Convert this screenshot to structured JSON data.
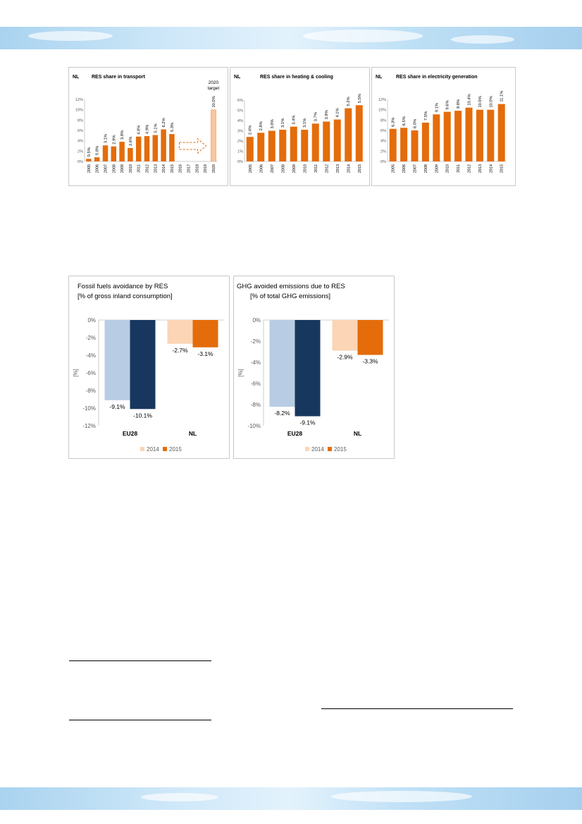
{
  "colors": {
    "orange": "#e46c0a",
    "light_orange": "#fbd5b5",
    "light_blue": "#b8cce4",
    "navy": "#17375e",
    "gridline": "#d9d9d9",
    "header_band": "#cfe8f9"
  },
  "chart_data": [
    {
      "type": "bar",
      "region": "NL",
      "title": "RES share in transport",
      "categories": [
        "2005",
        "2006",
        "2007",
        "2008",
        "2009",
        "2010",
        "2011",
        "2012",
        "2013",
        "2014",
        "2015",
        "2016",
        "2017",
        "2018",
        "2019",
        "2020"
      ],
      "values": [
        0.5,
        0.8,
        3.1,
        2.9,
        3.8,
        2.6,
        4.8,
        4.9,
        5.1,
        6.2,
        5.3,
        null,
        null,
        null,
        null,
        null
      ],
      "labels": [
        "0.5%",
        "0.8%",
        "3.1%",
        "2.9%",
        "3.8%",
        "2.6%",
        "4.8%",
        "4.9%",
        "5.1%",
        "6.2%",
        "5.3%",
        "",
        "",
        "",
        "",
        ""
      ],
      "target": {
        "label": "2020 target",
        "category": "2020",
        "value": 10.0,
        "value_label": "10.0%"
      },
      "yticks": [
        "0%",
        "2%",
        "4%",
        "6%",
        "8%",
        "10%",
        "12%"
      ],
      "ylim": [
        0,
        12
      ],
      "grid": false,
      "legend": "none"
    },
    {
      "type": "bar",
      "region": "NL",
      "title": "RES share in heating & cooling",
      "categories": [
        "2005",
        "2006",
        "2007",
        "2008",
        "2009",
        "2010",
        "2011",
        "2012",
        "2013",
        "2014",
        "2015"
      ],
      "values": [
        2.4,
        2.8,
        3.0,
        3.1,
        3.4,
        3.1,
        3.7,
        3.9,
        4.1,
        5.2,
        5.5
      ],
      "labels": [
        "2.4%",
        "2.8%",
        "3.0%",
        "3.1%",
        "3.4%",
        "3.1%",
        "3.7%",
        "3.9%",
        "4.1%",
        "5.2%",
        "5.5%"
      ],
      "yticks": [
        "0%",
        "1%",
        "2%",
        "3%",
        "4%",
        "5%",
        "6%"
      ],
      "ylim": [
        0,
        6
      ],
      "grid": false,
      "legend": "none"
    },
    {
      "type": "bar",
      "region": "NL",
      "title": "RES share in electricity generation",
      "categories": [
        "2005",
        "2006",
        "2007",
        "2008",
        "2009",
        "2010",
        "2011",
        "2012",
        "2013",
        "2014",
        "2015"
      ],
      "values": [
        6.3,
        6.5,
        6.0,
        7.5,
        9.1,
        9.6,
        9.8,
        10.4,
        10.0,
        10.0,
        11.1
      ],
      "labels": [
        "6.3%",
        "6.5%",
        "6.0%",
        "7.5%",
        "9.1%",
        "9.6%",
        "9.8%",
        "10.4%",
        "10.0%",
        "10.0%",
        "11.1%"
      ],
      "yticks": [
        "0%",
        "2%",
        "4%",
        "6%",
        "8%",
        "10%",
        "12%"
      ],
      "ylim": [
        0,
        12
      ],
      "grid": false,
      "legend": "none"
    },
    {
      "type": "bar",
      "title": "Fossil fuels avoidance by RES",
      "subtitle": "[% of gross inland consumption]",
      "ylabel": "[%]",
      "categories": [
        "EU28",
        "NL"
      ],
      "series": [
        {
          "name": "2014",
          "values": [
            -9.1,
            -2.7
          ],
          "labels": [
            "-9.1%",
            "-2.7%"
          ]
        },
        {
          "name": "2015",
          "values": [
            -10.1,
            -3.1
          ],
          "labels": [
            "-10.1%",
            "-3.1%"
          ]
        }
      ],
      "yticks": [
        "0%",
        "-2%",
        "-4%",
        "-6%",
        "-8%",
        "-10%",
        "-12%"
      ],
      "ylim": [
        -12,
        0
      ],
      "grid": false,
      "legend": "bottom"
    },
    {
      "type": "bar",
      "title": "GHG avoided emissions due to RES",
      "subtitle": "[% of total GHG emissions]",
      "ylabel": "[%]",
      "categories": [
        "EU28",
        "NL"
      ],
      "series": [
        {
          "name": "2014",
          "values": [
            -8.2,
            -2.9
          ],
          "labels": [
            "-8.2%",
            "-2.9%"
          ]
        },
        {
          "name": "2015",
          "values": [
            -9.1,
            -3.3
          ],
          "labels": [
            "-9.1%",
            "-3.3%"
          ]
        }
      ],
      "yticks": [
        "0%",
        "-2%",
        "-4%",
        "-6%",
        "-8%",
        "-10%"
      ],
      "ylim": [
        -10,
        0
      ],
      "grid": false,
      "legend": "bottom"
    }
  ]
}
